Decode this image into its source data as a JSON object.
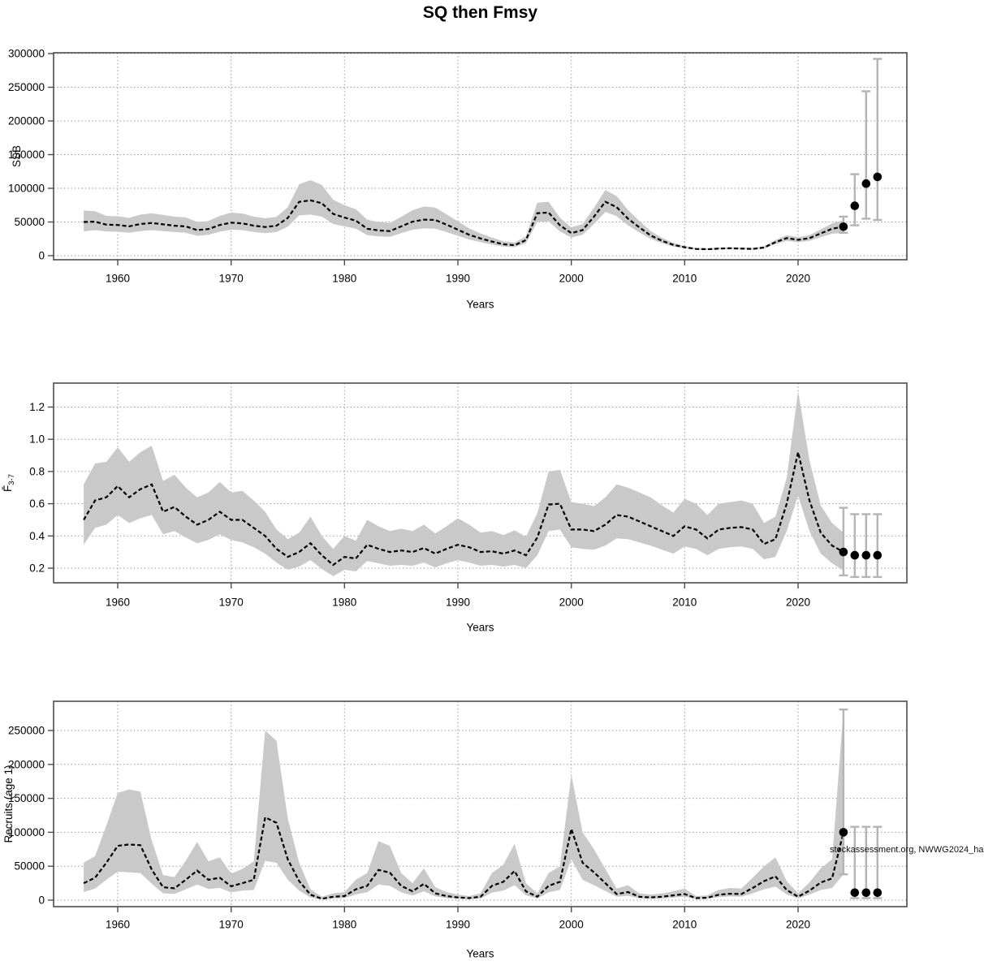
{
  "title": "SQ then Fmsy",
  "watermark": "stockassessment.org, NWWG2024_ha",
  "colors": {
    "background": "#ffffff",
    "band": "#c9c9c9",
    "line": "#000000",
    "grid": "#9a9a9a",
    "box": "#4d4d4d",
    "errorbar": "#b4b4b4",
    "point": "#000000"
  },
  "chart_data": [
    {
      "type": "area",
      "name": "ssb-panel",
      "xlabel": "Years",
      "ylabel": {
        "base": "SSB",
        "sub": ""
      },
      "ylim": [
        0,
        300000
      ],
      "grid": true,
      "x_ticks": [
        1960,
        1970,
        1980,
        1990,
        2000,
        2010,
        2020
      ],
      "y_ticks": [
        {
          "value": 0,
          "label": "0"
        },
        {
          "value": 50000,
          "label": "50000"
        },
        {
          "value": 100000,
          "label": "100000"
        },
        {
          "value": 150000,
          "label": "150000"
        },
        {
          "value": 200000,
          "label": "200000"
        },
        {
          "value": 250000,
          "label": "250000"
        },
        {
          "value": 300000,
          "label": "300000"
        }
      ],
      "years": [
        1957,
        1958,
        1959,
        1960,
        1961,
        1962,
        1963,
        1964,
        1965,
        1966,
        1967,
        1968,
        1969,
        1970,
        1971,
        1972,
        1973,
        1974,
        1975,
        1976,
        1977,
        1978,
        1979,
        1980,
        1981,
        1982,
        1983,
        1984,
        1985,
        1986,
        1987,
        1988,
        1989,
        1990,
        1991,
        1992,
        1993,
        1994,
        1995,
        1996,
        1997,
        1998,
        1999,
        2000,
        2001,
        2002,
        2003,
        2004,
        2005,
        2006,
        2007,
        2008,
        2009,
        2010,
        2011,
        2012,
        2013,
        2014,
        2015,
        2016,
        2017,
        2018,
        2019,
        2020,
        2021,
        2022,
        2023,
        2024
      ],
      "median": [
        50000,
        50500,
        46000,
        45500,
        43500,
        47000,
        48500,
        46500,
        44500,
        43500,
        38000,
        39500,
        45500,
        49000,
        48000,
        44500,
        42500,
        44500,
        56000,
        80000,
        82000,
        78000,
        62000,
        56500,
        52000,
        40000,
        37500,
        36500,
        43500,
        50500,
        53500,
        53000,
        46000,
        38500,
        31000,
        25500,
        21000,
        17000,
        15500,
        23000,
        63000,
        64000,
        45000,
        33500,
        38000,
        58000,
        80000,
        72000,
        55000,
        42000,
        30000,
        22000,
        16000,
        12500,
        10000,
        9500,
        10500,
        11000,
        10500,
        10000,
        12000,
        20000,
        26000,
        23500,
        26000,
        33000,
        40000,
        43000
      ],
      "lo": [
        36000,
        38000,
        36000,
        35500,
        34000,
        36500,
        38000,
        36500,
        35000,
        34000,
        29500,
        31000,
        35500,
        38500,
        38000,
        35000,
        33500,
        35000,
        43000,
        60000,
        61000,
        58000,
        47000,
        43500,
        40000,
        30500,
        28500,
        28000,
        33500,
        38500,
        40500,
        40000,
        35000,
        29500,
        24000,
        20000,
        16500,
        13500,
        12500,
        18500,
        50000,
        51000,
        36000,
        27000,
        31000,
        47000,
        65000,
        58500,
        45000,
        34500,
        25000,
        18500,
        13500,
        10800,
        8700,
        8300,
        9200,
        9600,
        9200,
        8700,
        10400,
        17200,
        22000,
        20000,
        22000,
        27500,
        32500,
        34000
      ],
      "hi": [
        67000,
        66000,
        59000,
        58500,
        56000,
        61000,
        63000,
        60500,
        58000,
        57000,
        50000,
        51500,
        59000,
        64000,
        62500,
        58000,
        55500,
        57500,
        72000,
        106000,
        112000,
        105000,
        83000,
        75000,
        69000,
        53500,
        50000,
        48500,
        57500,
        67500,
        73000,
        71500,
        61500,
        51000,
        40500,
        33000,
        27000,
        21500,
        19500,
        28500,
        78500,
        80000,
        56500,
        42000,
        47000,
        71000,
        97500,
        88500,
        68000,
        51500,
        36500,
        26500,
        19000,
        14500,
        11500,
        11000,
        12100,
        12700,
        12100,
        11500,
        13900,
        23200,
        30500,
        27500,
        30500,
        39000,
        48000,
        52500
      ],
      "forecast": {
        "years": [
          2024,
          2025,
          2026,
          2027
        ],
        "values": [
          43000,
          74000,
          107000,
          117000
        ],
        "lo": [
          34000,
          45000,
          55000,
          53000
        ],
        "hi": [
          58000,
          121000,
          244000,
          292000
        ]
      }
    },
    {
      "type": "area",
      "name": "fbar-panel",
      "xlabel": "Years",
      "ylabel": {
        "base": "F̄",
        "sub": "3-7"
      },
      "ylim": [
        0.1,
        1.38
      ],
      "grid": true,
      "x_ticks": [
        1960,
        1970,
        1980,
        1990,
        2000,
        2010,
        2020
      ],
      "y_ticks": [
        {
          "value": 0.2,
          "label": "0.2"
        },
        {
          "value": 0.4,
          "label": "0.4"
        },
        {
          "value": 0.6,
          "label": "0.6"
        },
        {
          "value": 0.8,
          "label": "0.8"
        },
        {
          "value": 1.0,
          "label": "1.0"
        },
        {
          "value": 1.2,
          "label": "1.2"
        }
      ],
      "years": [
        1957,
        1958,
        1959,
        1960,
        1961,
        1962,
        1963,
        1964,
        1965,
        1966,
        1967,
        1968,
        1969,
        1970,
        1971,
        1972,
        1973,
        1974,
        1975,
        1976,
        1977,
        1978,
        1979,
        1980,
        1981,
        1982,
        1983,
        1984,
        1985,
        1986,
        1987,
        1988,
        1989,
        1990,
        1991,
        1992,
        1993,
        1994,
        1995,
        1996,
        1997,
        1998,
        1999,
        2000,
        2001,
        2002,
        2003,
        2004,
        2005,
        2006,
        2007,
        2008,
        2009,
        2010,
        2011,
        2012,
        2013,
        2014,
        2015,
        2016,
        2017,
        2018,
        2019,
        2020,
        2021,
        2022,
        2023,
        2024
      ],
      "median": [
        0.5,
        0.62,
        0.64,
        0.71,
        0.64,
        0.69,
        0.72,
        0.55,
        0.58,
        0.52,
        0.47,
        0.5,
        0.55,
        0.5,
        0.5,
        0.45,
        0.4,
        0.32,
        0.27,
        0.3,
        0.355,
        0.28,
        0.22,
        0.27,
        0.26,
        0.345,
        0.32,
        0.3,
        0.31,
        0.3,
        0.325,
        0.29,
        0.32,
        0.345,
        0.33,
        0.3,
        0.305,
        0.29,
        0.31,
        0.28,
        0.39,
        0.595,
        0.6,
        0.44,
        0.44,
        0.43,
        0.47,
        0.53,
        0.52,
        0.49,
        0.46,
        0.43,
        0.4,
        0.46,
        0.44,
        0.385,
        0.44,
        0.45,
        0.455,
        0.44,
        0.35,
        0.38,
        0.6,
        0.92,
        0.62,
        0.42,
        0.34,
        0.3
      ],
      "lo": [
        0.345,
        0.45,
        0.47,
        0.53,
        0.48,
        0.51,
        0.53,
        0.41,
        0.43,
        0.39,
        0.355,
        0.375,
        0.41,
        0.375,
        0.36,
        0.33,
        0.29,
        0.235,
        0.19,
        0.21,
        0.25,
        0.195,
        0.15,
        0.19,
        0.18,
        0.245,
        0.23,
        0.215,
        0.22,
        0.215,
        0.235,
        0.205,
        0.23,
        0.25,
        0.235,
        0.215,
        0.22,
        0.21,
        0.22,
        0.2,
        0.28,
        0.43,
        0.44,
        0.33,
        0.32,
        0.315,
        0.34,
        0.385,
        0.38,
        0.36,
        0.34,
        0.315,
        0.29,
        0.335,
        0.32,
        0.28,
        0.32,
        0.33,
        0.335,
        0.32,
        0.255,
        0.27,
        0.43,
        0.65,
        0.43,
        0.29,
        0.23,
        0.185
      ],
      "hi": [
        0.72,
        0.85,
        0.86,
        0.95,
        0.86,
        0.92,
        0.96,
        0.74,
        0.78,
        0.7,
        0.64,
        0.67,
        0.735,
        0.67,
        0.68,
        0.62,
        0.55,
        0.44,
        0.38,
        0.42,
        0.52,
        0.4,
        0.32,
        0.4,
        0.37,
        0.5,
        0.46,
        0.43,
        0.445,
        0.43,
        0.47,
        0.415,
        0.46,
        0.51,
        0.47,
        0.42,
        0.43,
        0.405,
        0.435,
        0.395,
        0.54,
        0.8,
        0.81,
        0.61,
        0.6,
        0.585,
        0.64,
        0.72,
        0.7,
        0.67,
        0.64,
        0.59,
        0.545,
        0.63,
        0.6,
        0.53,
        0.6,
        0.61,
        0.62,
        0.6,
        0.48,
        0.52,
        0.76,
        1.3,
        0.87,
        0.59,
        0.48,
        0.42
      ],
      "forecast": {
        "years": [
          2024,
          2025,
          2026,
          2027
        ],
        "values": [
          0.3,
          0.28,
          0.28,
          0.28
        ],
        "lo": [
          0.155,
          0.145,
          0.145,
          0.145
        ],
        "hi": [
          0.575,
          0.535,
          0.535,
          0.535
        ]
      }
    },
    {
      "type": "area",
      "name": "recruits-panel",
      "xlabel": "Years",
      "ylabel": {
        "base": "Recruits (age 1)",
        "sub": ""
      },
      "ylim": [
        0,
        290000
      ],
      "grid": true,
      "x_ticks": [
        1960,
        1970,
        1980,
        1990,
        2000,
        2010,
        2020
      ],
      "y_ticks": [
        {
          "value": 0,
          "label": "0"
        },
        {
          "value": 50000,
          "label": "50000"
        },
        {
          "value": 100000,
          "label": "100000"
        },
        {
          "value": 150000,
          "label": "150000"
        },
        {
          "value": 200000,
          "label": "200000"
        },
        {
          "value": 250000,
          "label": "250000"
        }
      ],
      "years": [
        1957,
        1958,
        1959,
        1960,
        1961,
        1962,
        1963,
        1964,
        1965,
        1966,
        1967,
        1968,
        1969,
        1970,
        1971,
        1972,
        1973,
        1974,
        1975,
        1976,
        1977,
        1978,
        1979,
        1980,
        1981,
        1982,
        1983,
        1984,
        1985,
        1986,
        1987,
        1988,
        1989,
        1990,
        1991,
        1992,
        1993,
        1994,
        1995,
        1996,
        1997,
        1998,
        1999,
        2000,
        2001,
        2002,
        2003,
        2004,
        2005,
        2006,
        2007,
        2008,
        2009,
        2010,
        2011,
        2012,
        2013,
        2014,
        2015,
        2016,
        2017,
        2018,
        2019,
        2020,
        2021,
        2022,
        2023,
        2024
      ],
      "median": [
        25000,
        33000,
        55000,
        80000,
        82000,
        81000,
        45000,
        19000,
        17500,
        30000,
        43500,
        30000,
        33000,
        20500,
        25000,
        30000,
        122000,
        114000,
        60000,
        28000,
        8000,
        2000,
        5000,
        6000,
        16000,
        21000,
        44500,
        40500,
        21000,
        13000,
        24000,
        10000,
        6000,
        4000,
        3000,
        5000,
        21000,
        27000,
        43000,
        13000,
        5000,
        21000,
        27000,
        105000,
        55000,
        41000,
        25000,
        9000,
        12000,
        5000,
        4000,
        5000,
        7000,
        9000,
        3000,
        3500,
        8000,
        9500,
        9000,
        18000,
        28000,
        35000,
        15000,
        5000,
        14000,
        26000,
        32000,
        100000
      ],
      "lo": [
        12000,
        17000,
        30000,
        42000,
        41000,
        40000,
        24000,
        10000,
        9000,
        16000,
        23000,
        16500,
        18000,
        11500,
        14000,
        15000,
        58000,
        55000,
        30000,
        14000,
        4000,
        1000,
        2500,
        3000,
        8500,
        11500,
        23000,
        21000,
        11500,
        7000,
        13000,
        5500,
        3000,
        2000,
        1500,
        2500,
        11000,
        14000,
        22000,
        7000,
        2500,
        11500,
        15000,
        60000,
        30000,
        22000,
        13500,
        5000,
        6500,
        2500,
        2000,
        2500,
        4000,
        5000,
        1500,
        2000,
        4500,
        5500,
        5000,
        10000,
        16000,
        20000,
        8500,
        2500,
        8000,
        15000,
        18000,
        38000
      ],
      "hi": [
        55000,
        65000,
        110000,
        158000,
        163000,
        160000,
        88000,
        37000,
        34000,
        58000,
        86000,
        57000,
        63000,
        39000,
        46000,
        57000,
        250000,
        235000,
        120000,
        55000,
        16000,
        5000,
        10000,
        12000,
        30000,
        40000,
        87000,
        80000,
        40000,
        25000,
        47000,
        19000,
        12000,
        8000,
        6000,
        10000,
        40000,
        52000,
        83000,
        25000,
        10000,
        40000,
        50000,
        185000,
        100000,
        75000,
        46000,
        17000,
        22000,
        10000,
        8000,
        10000,
        13000,
        17000,
        6000,
        7000,
        15000,
        18000,
        17000,
        33000,
        50000,
        63000,
        28000,
        10000,
        26000,
        47000,
        60000,
        281000
      ],
      "forecast": {
        "years": [
          2024,
          2025,
          2026,
          2027
        ],
        "values": [
          100000,
          11000,
          11000,
          11000
        ],
        "lo": [
          38000,
          3000,
          3000,
          3000
        ],
        "hi": [
          281000,
          108000,
          108000,
          108000
        ]
      }
    }
  ]
}
